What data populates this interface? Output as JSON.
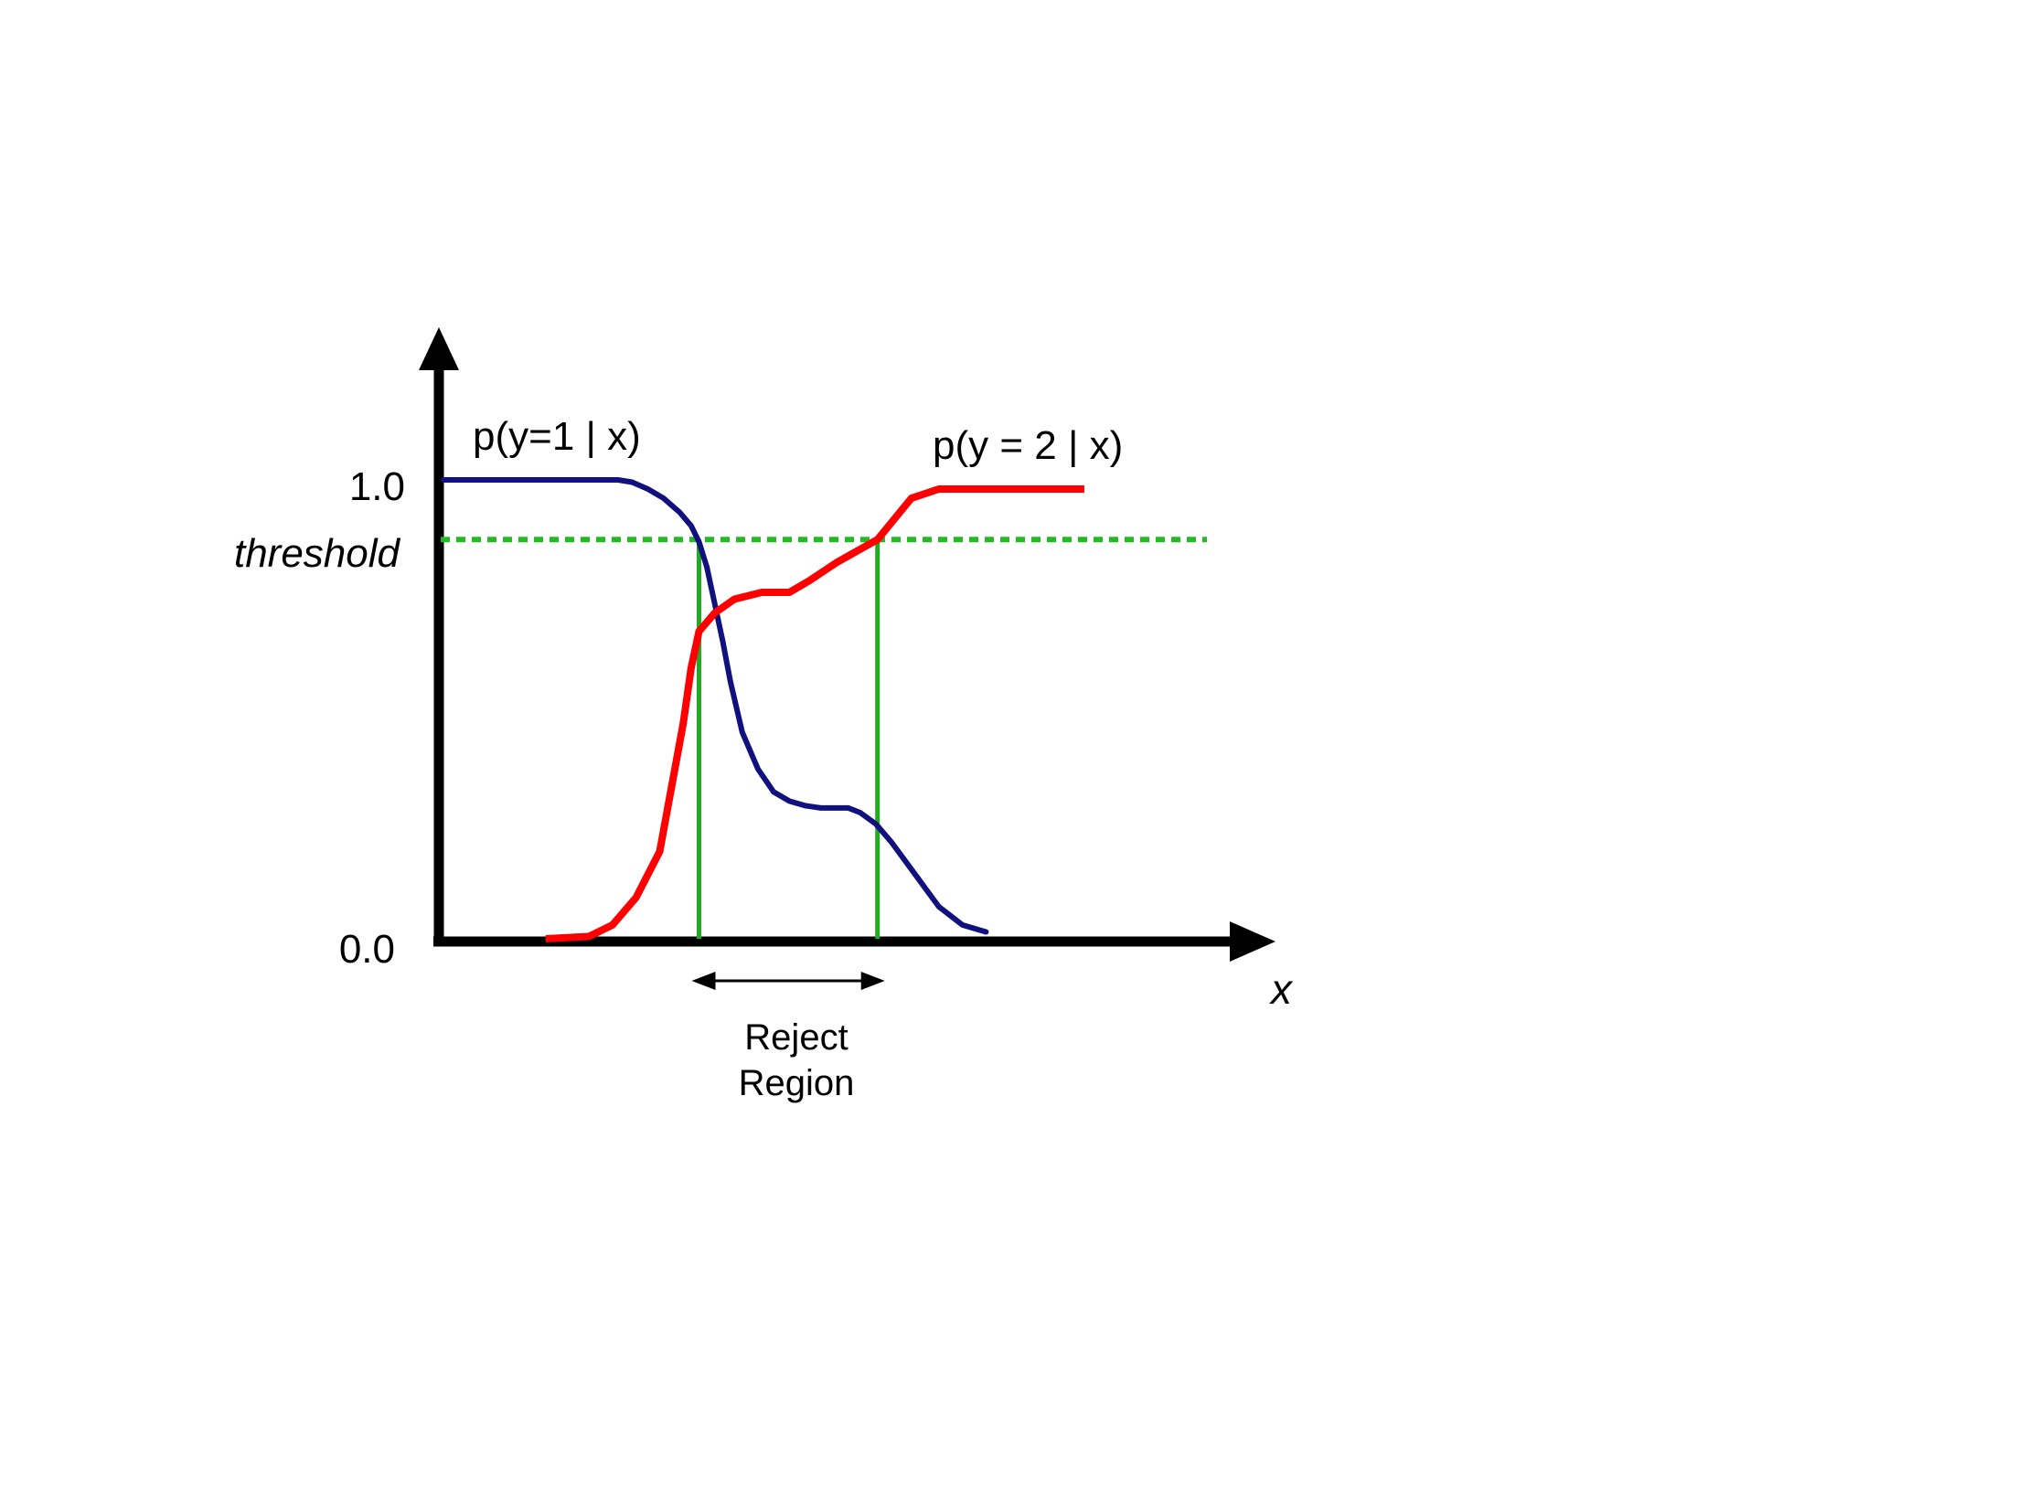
{
  "chart_data": {
    "type": "line",
    "title": "",
    "xlabel": "x",
    "ylabel": "",
    "ytick_labels": [
      {
        "value": 1.0,
        "label": "1.0"
      },
      {
        "value": 0.0,
        "label": "0.0"
      }
    ],
    "ylim": [
      0,
      1.2
    ],
    "xlim": [
      0,
      1
    ],
    "grid": false,
    "threshold": {
      "label": "threshold",
      "value": 0.87,
      "color": "#22bb22"
    },
    "reject_region": {
      "label_line1": "Reject",
      "label_line2": "Region",
      "x_start": 0.325,
      "x_end": 0.552,
      "color": "#22aa22"
    },
    "series": [
      {
        "name": "p(y=1 | x)",
        "color": "#10107f",
        "x": [
          0.0,
          0.222,
          0.24,
          0.26,
          0.28,
          0.3,
          0.315,
          0.325,
          0.335,
          0.345,
          0.355,
          0.365,
          0.38,
          0.4,
          0.42,
          0.44,
          0.46,
          0.48,
          0.5,
          0.515,
          0.53,
          0.55,
          0.57,
          0.6,
          0.63,
          0.66,
          0.69
        ],
        "y": [
          1.0,
          1.0,
          0.995,
          0.98,
          0.96,
          0.93,
          0.9,
          0.865,
          0.81,
          0.73,
          0.65,
          0.56,
          0.45,
          0.37,
          0.32,
          0.3,
          0.29,
          0.285,
          0.285,
          0.285,
          0.275,
          0.25,
          0.21,
          0.14,
          0.07,
          0.03,
          0.015
        ]
      },
      {
        "name": "p(y = 2 | x)",
        "color": "#ff0000",
        "x": [
          0.13,
          0.185,
          0.215,
          0.245,
          0.275,
          0.305,
          0.315,
          0.325,
          0.345,
          0.37,
          0.405,
          0.44,
          0.465,
          0.5,
          0.552,
          0.595,
          0.63,
          0.815
        ],
        "y": [
          0.0,
          0.005,
          0.03,
          0.09,
          0.19,
          0.47,
          0.59,
          0.67,
          0.71,
          0.74,
          0.755,
          0.755,
          0.78,
          0.82,
          0.87,
          0.96,
          0.98,
          0.98
        ]
      }
    ]
  }
}
